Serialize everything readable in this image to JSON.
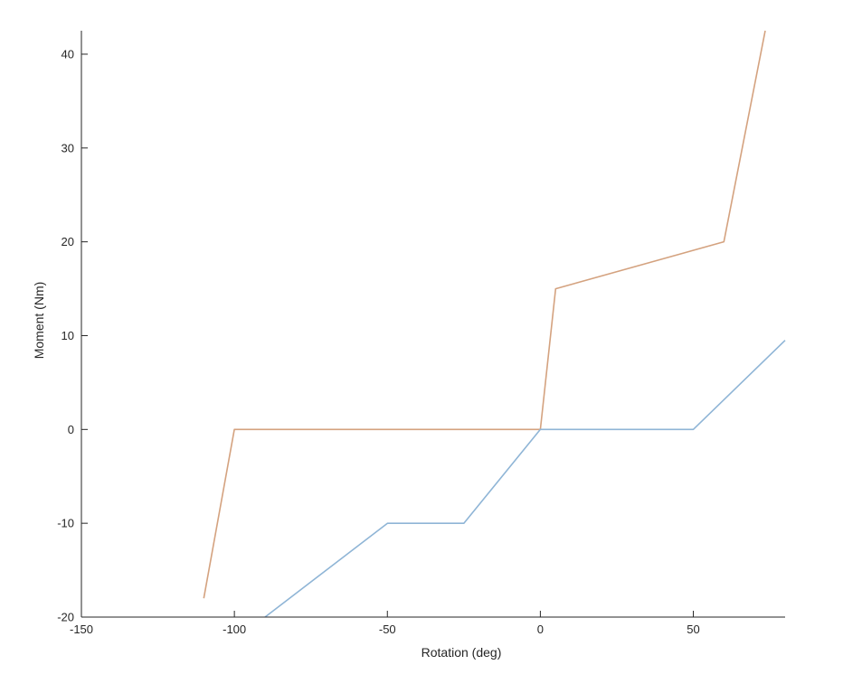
{
  "chart_data": {
    "type": "line",
    "title": "",
    "xlabel": "Rotation (deg)",
    "ylabel": "Moment (Nm)",
    "xlim": [
      -150,
      80
    ],
    "ylim": [
      -20,
      42.5
    ],
    "xticks": [
      -150,
      -100,
      -50,
      0,
      50
    ],
    "yticks": [
      -20,
      -10,
      0,
      10,
      20,
      30,
      40
    ],
    "xtick_labels": [
      "-150",
      "-100",
      "-50",
      "0",
      "50"
    ],
    "ytick_labels": [
      "-20",
      "-10",
      "0",
      "10",
      "20",
      "30",
      "40"
    ],
    "grid": false,
    "legend": "none",
    "box": "left-bottom",
    "series": [
      {
        "color": "#d4a27f",
        "x": [
          -110,
          -100,
          0,
          5,
          60,
          73.5
        ],
        "y": [
          -18,
          0,
          0,
          15,
          20,
          42.5
        ]
      },
      {
        "color": "#8fb5d6",
        "x": [
          -90,
          -50,
          -25,
          0,
          50,
          80
        ],
        "y": [
          -20,
          -10,
          -10,
          0,
          0,
          9.5
        ]
      }
    ],
    "axis_color": "#262626"
  }
}
